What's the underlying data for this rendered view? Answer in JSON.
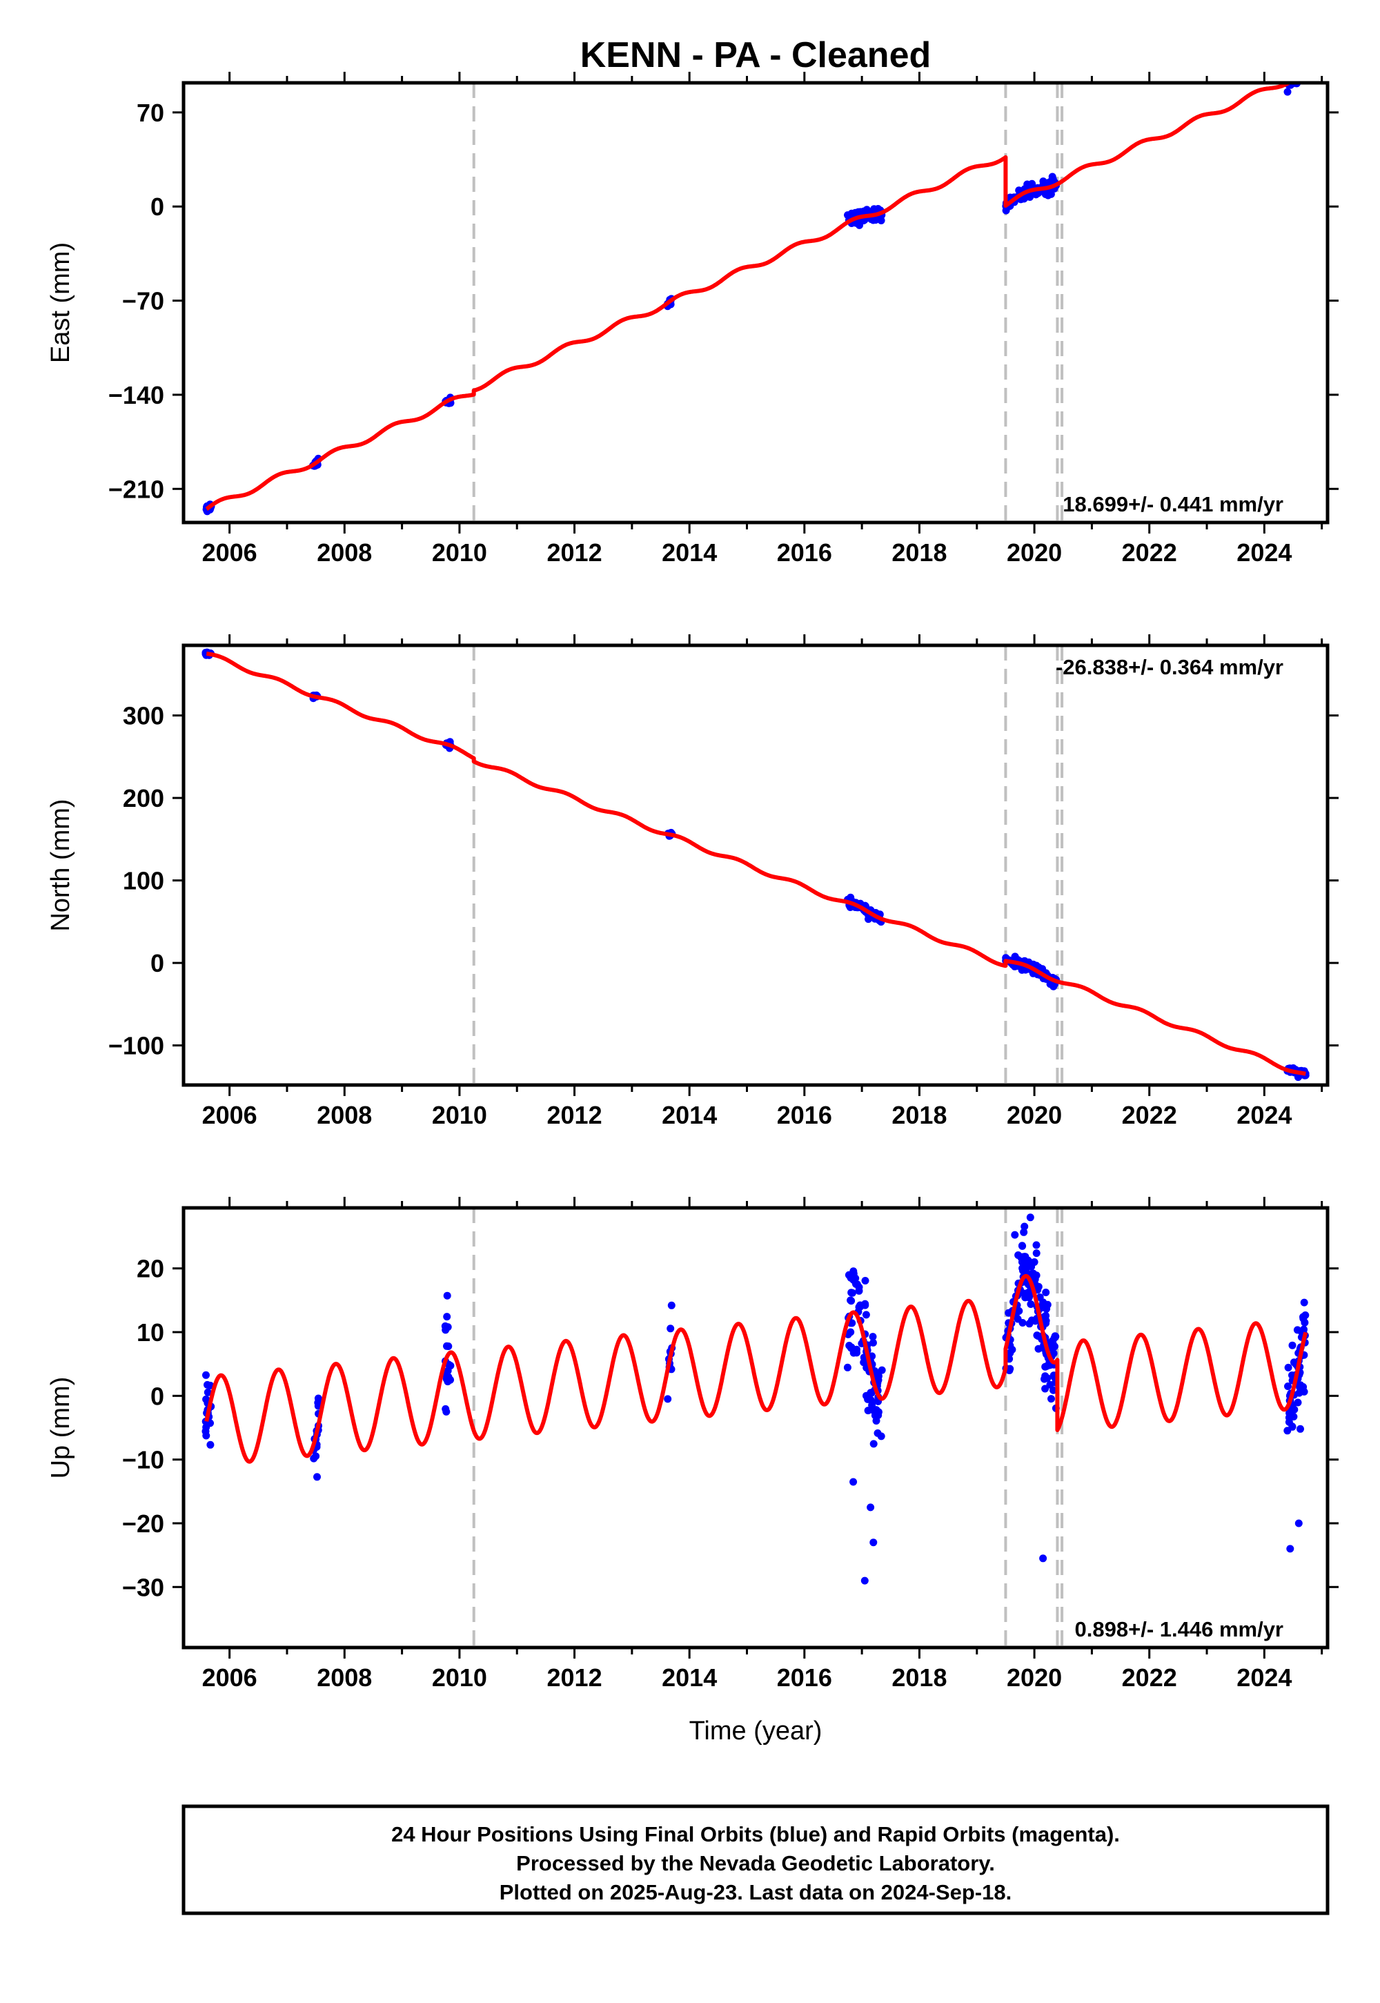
{
  "title": "KENN  - PA - Cleaned",
  "colors": {
    "data_points": "#0000ff",
    "model_line": "#ff0000",
    "break_lines": "#c0c0c0",
    "frame": "#000000"
  },
  "chart_data": [
    {
      "type": "scatter",
      "panel": "east",
      "ylabel": "East (mm)",
      "xlim": [
        2005.2,
        2025.1
      ],
      "ylim": [
        -235,
        92
      ],
      "xticks": [
        2006,
        2008,
        2010,
        2012,
        2014,
        2016,
        2018,
        2020,
        2022,
        2024
      ],
      "xtick_labels": [
        "2006",
        "2008",
        "2010",
        "2012",
        "2014",
        "2016",
        "2018",
        "2020",
        "2022",
        "2024"
      ],
      "yticks": [
        70,
        0,
        -70,
        -140,
        -210
      ],
      "ytick_labels": [
        "70",
        "0",
        "−70",
        "−140",
        "−210"
      ],
      "rate_label": "18.699+/- 0.441 mm/yr",
      "rate_position": "bottom-right",
      "breaks": [
        2010.25,
        2019.5,
        2020.4,
        2020.48
      ],
      "model": {
        "t0": 2005.6,
        "rate": 18.699,
        "offset0": -225,
        "steps": [
          {
            "t": 2010.25,
            "dy": 3
          },
          {
            "t": 2019.5,
            "dy": -36
          }
        ],
        "annual_amp": 2.2
      },
      "data_clusters": [
        {
          "start": 2005.58,
          "end": 2005.68,
          "n": 14,
          "scatter": 1.5
        },
        {
          "start": 2007.45,
          "end": 2007.55,
          "n": 12,
          "scatter": 1.5
        },
        {
          "start": 2009.75,
          "end": 2009.85,
          "n": 12,
          "scatter": 1.5
        },
        {
          "start": 2013.62,
          "end": 2013.7,
          "n": 8,
          "scatter": 1.5
        },
        {
          "start": 2016.75,
          "end": 2017.35,
          "n": 70,
          "scatter": 2.5
        },
        {
          "start": 2019.5,
          "end": 2020.38,
          "n": 110,
          "scatter": 2.5
        },
        {
          "start": 2024.4,
          "end": 2024.72,
          "n": 45,
          "scatter": 1.8
        }
      ],
      "outlier_points": [
        {
          "x": 2020.3,
          "y": 16
        }
      ]
    },
    {
      "type": "scatter",
      "panel": "north",
      "ylabel": "North (mm)",
      "xlim": [
        2005.2,
        2025.1
      ],
      "ylim": [
        -148,
        385
      ],
      "xticks": [
        2006,
        2008,
        2010,
        2012,
        2014,
        2016,
        2018,
        2020,
        2022,
        2024
      ],
      "xtick_labels": [
        "2006",
        "2008",
        "2010",
        "2012",
        "2014",
        "2016",
        "2018",
        "2020",
        "2022",
        "2024"
      ],
      "yticks": [
        300,
        200,
        100,
        0,
        -100
      ],
      "ytick_labels": [
        "300",
        "200",
        "100",
        "0",
        "−100"
      ],
      "rate_label": "-26.838+/- 0.364 mm/yr",
      "rate_position": "top-right",
      "breaks": [
        2010.25,
        2019.5,
        2020.4,
        2020.48
      ],
      "model": {
        "t0": 2005.6,
        "rate": -26.838,
        "offset0": 375,
        "steps": [
          {
            "t": 2010.25,
            "dy": -4
          },
          {
            "t": 2019.5,
            "dy": 6
          }
        ],
        "annual_amp": 2.5
      },
      "data_clusters": [
        {
          "start": 2005.58,
          "end": 2005.68,
          "n": 14,
          "scatter": 1.5
        },
        {
          "start": 2007.45,
          "end": 2007.55,
          "n": 12,
          "scatter": 1.5
        },
        {
          "start": 2009.75,
          "end": 2009.85,
          "n": 12,
          "scatter": 1.5
        },
        {
          "start": 2013.62,
          "end": 2013.7,
          "n": 8,
          "scatter": 1.5
        },
        {
          "start": 2016.75,
          "end": 2017.35,
          "n": 70,
          "scatter": 3
        },
        {
          "start": 2019.5,
          "end": 2020.38,
          "n": 110,
          "scatter": 3
        },
        {
          "start": 2024.4,
          "end": 2024.72,
          "n": 45,
          "scatter": 2
        }
      ],
      "outlier_points": []
    },
    {
      "type": "scatter",
      "panel": "up",
      "ylabel": "Up (mm)",
      "xlabel": "Time (year)",
      "xlim": [
        2005.2,
        2025.1
      ],
      "ylim": [
        -39.5,
        29.5
      ],
      "xticks": [
        2006,
        2008,
        2010,
        2012,
        2014,
        2016,
        2018,
        2020,
        2022,
        2024
      ],
      "xtick_labels": [
        "2006",
        "2008",
        "2010",
        "2012",
        "2014",
        "2016",
        "2018",
        "2020",
        "2022",
        "2024"
      ],
      "yticks": [
        20,
        10,
        0,
        -10,
        -20,
        -30
      ],
      "ytick_labels": [
        "20",
        "10",
        "0",
        "−10",
        "−20",
        "−30"
      ],
      "rate_label": "0.898+/- 1.446 mm/yr",
      "rate_position": "bottom-right",
      "breaks": [
        2010.25,
        2019.5,
        2020.4,
        2020.48
      ],
      "model": {
        "t0": 2005.6,
        "rate": 0.898,
        "offset0": -4,
        "steps": [
          {
            "t": 2019.5,
            "dy": 3
          },
          {
            "t": 2020.4,
            "dy": -11
          }
        ],
        "annual_amp": 7
      },
      "data_clusters": [
        {
          "start": 2005.58,
          "end": 2005.68,
          "n": 18,
          "scatter": 2.5
        },
        {
          "start": 2007.45,
          "end": 2007.55,
          "n": 16,
          "scatter": 3
        },
        {
          "start": 2009.75,
          "end": 2009.85,
          "n": 18,
          "scatter": 4
        },
        {
          "start": 2013.62,
          "end": 2013.7,
          "n": 12,
          "scatter": 3
        },
        {
          "start": 2016.75,
          "end": 2017.35,
          "n": 90,
          "scatter": 4
        },
        {
          "start": 2019.5,
          "end": 2020.38,
          "n": 150,
          "scatter": 3.5
        },
        {
          "start": 2024.4,
          "end": 2024.72,
          "n": 60,
          "scatter": 4
        }
      ],
      "outlier_points": [
        {
          "x": 2019.93,
          "y": 28
        },
        {
          "x": 2020.0,
          "y": 21
        },
        {
          "x": 2019.9,
          "y": 16
        },
        {
          "x": 2017.05,
          "y": -29
        },
        {
          "x": 2017.2,
          "y": -23
        },
        {
          "x": 2017.15,
          "y": -17.5
        },
        {
          "x": 2016.85,
          "y": -13.5
        },
        {
          "x": 2020.15,
          "y": -25.5
        },
        {
          "x": 2024.45,
          "y": -24
        },
        {
          "x": 2024.6,
          "y": -20
        },
        {
          "x": 2009.77,
          "y": -2.5
        }
      ]
    }
  ],
  "footer": {
    "line1": "24 Hour Positions Using Final Orbits (blue) and Rapid Orbits (magenta).",
    "line2": "Processed by the Nevada Geodetic Laboratory.",
    "line3": "Plotted on 2025-Aug-23. Last data on 2024-Sep-18."
  }
}
